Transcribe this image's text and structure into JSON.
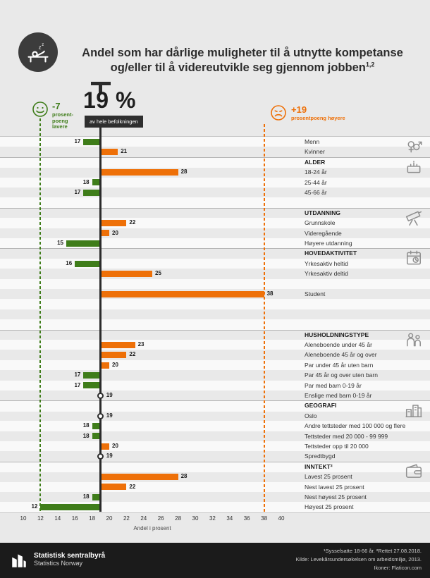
{
  "header": {
    "title_line1": "Andel som har dårlige muligheter til å utnytte kompetanse",
    "title_line2": "og/eller til å videreutvikle seg gjennom jobben",
    "title_sup": "1,2"
  },
  "highlight": {
    "value": "19 %",
    "caption": "av hele befolkningen"
  },
  "left_marker": {
    "delta": "-7",
    "lines": [
      "prosent-",
      "poeng",
      "lavere"
    ]
  },
  "right_marker": {
    "delta": "+19",
    "line": "prosentpoeng høyere"
  },
  "chart_data": {
    "type": "bar",
    "orientation": "horizontal",
    "title": "Andel som har dårlige muligheter til å utnytte kompetanse og/eller til å videreutvikle seg gjennom jobben",
    "baseline_value": 19,
    "baseline_label": "19 % av hele befolkningen",
    "low_marker": {
      "value": 12,
      "label": "-7 prosentpoeng lavere"
    },
    "high_marker": {
      "value": 38,
      "label": "+19 prosentpoeng høyere"
    },
    "axis": {
      "min": 10,
      "max": 40,
      "step": 2,
      "label": "Andel i prosent"
    },
    "colors": {
      "below": "#3f7d1a",
      "above": "#ee7008",
      "baseline": "#2b2b2b"
    },
    "rows": [
      {
        "type": "bar",
        "label": "Menn",
        "value": 17,
        "icon": "gender-icon"
      },
      {
        "type": "bar",
        "label": "Kvinner",
        "value": 21
      },
      {
        "type": "header",
        "label": "ALDER",
        "icon": "cake-icon"
      },
      {
        "type": "bar",
        "label": "18-24 år",
        "value": 28
      },
      {
        "type": "bar",
        "label": "25-44 år",
        "value": 18
      },
      {
        "type": "bar",
        "label": "45-66 år",
        "value": 17
      },
      {
        "type": "spacer"
      },
      {
        "type": "header",
        "label": "UTDANNING",
        "icon": "telescope-icon"
      },
      {
        "type": "bar",
        "label": "Grunnskole",
        "value": 22
      },
      {
        "type": "bar",
        "label": "Videregående",
        "value": 20
      },
      {
        "type": "bar",
        "label": "Høyere utdanning",
        "value": 15
      },
      {
        "type": "header",
        "label": "HOVEDAKTIVITET",
        "icon": "calendar-icon"
      },
      {
        "type": "bar",
        "label": "Yrkesaktiv heltid",
        "value": 16
      },
      {
        "type": "bar",
        "label": "Yrkesaktiv deltid",
        "value": 25
      },
      {
        "type": "spacer"
      },
      {
        "type": "bar",
        "label": "Student",
        "value": 38
      },
      {
        "type": "spacer"
      },
      {
        "type": "spacer"
      },
      {
        "type": "spacer"
      },
      {
        "type": "header",
        "label": "HUSHOLDNINGSTYPE",
        "icon": "family-icon"
      },
      {
        "type": "bar",
        "label": "Aleneboende under 45 år",
        "value": 23
      },
      {
        "type": "bar",
        "label": "Aleneboende 45 år og over",
        "value": 22
      },
      {
        "type": "bar",
        "label": "Par under 45 år uten barn",
        "value": 20
      },
      {
        "type": "bar",
        "label": "Par 45 år og over uten barn",
        "value": 17
      },
      {
        "type": "bar",
        "label": "Par med barn 0-19 år",
        "value": 17
      },
      {
        "type": "bar",
        "label": "Enslige med barn 0-19 år",
        "value": 19
      },
      {
        "type": "header",
        "label": "GEOGRAFI",
        "icon": "city-icon"
      },
      {
        "type": "bar",
        "label": "Oslo",
        "value": 19
      },
      {
        "type": "bar",
        "label": "Andre tettsteder med 100 000 og flere",
        "value": 18
      },
      {
        "type": "bar",
        "label": "Tettsteder med 20 000 - 99 999",
        "value": 18
      },
      {
        "type": "bar",
        "label": "Tettsteder opp til 20 000",
        "value": 20
      },
      {
        "type": "bar",
        "label": "Spredtbygd",
        "value": 19
      },
      {
        "type": "header",
        "label": "INNTEKT²",
        "icon": "wallet-icon"
      },
      {
        "type": "bar",
        "label": "Lavest 25 prosent",
        "value": 28
      },
      {
        "type": "bar",
        "label": "Nest lavest 25 prosent",
        "value": 22
      },
      {
        "type": "bar",
        "label": "Nest høyest 25 prosent",
        "value": 18
      },
      {
        "type": "bar",
        "label": "Høyest 25 prosent",
        "value": 12
      }
    ]
  },
  "footer": {
    "org_name": "Statistisk sentralbyrå",
    "org_name_en": "Statistics Norway",
    "notes": [
      "¹Sysselsatte 18-66 år. ²Rettet 27.08.2018.",
      "Kilde: Levekårsundersøkelsen om arbeidsmiljø, 2013.",
      "Ikoner: Flaticon.com"
    ]
  }
}
